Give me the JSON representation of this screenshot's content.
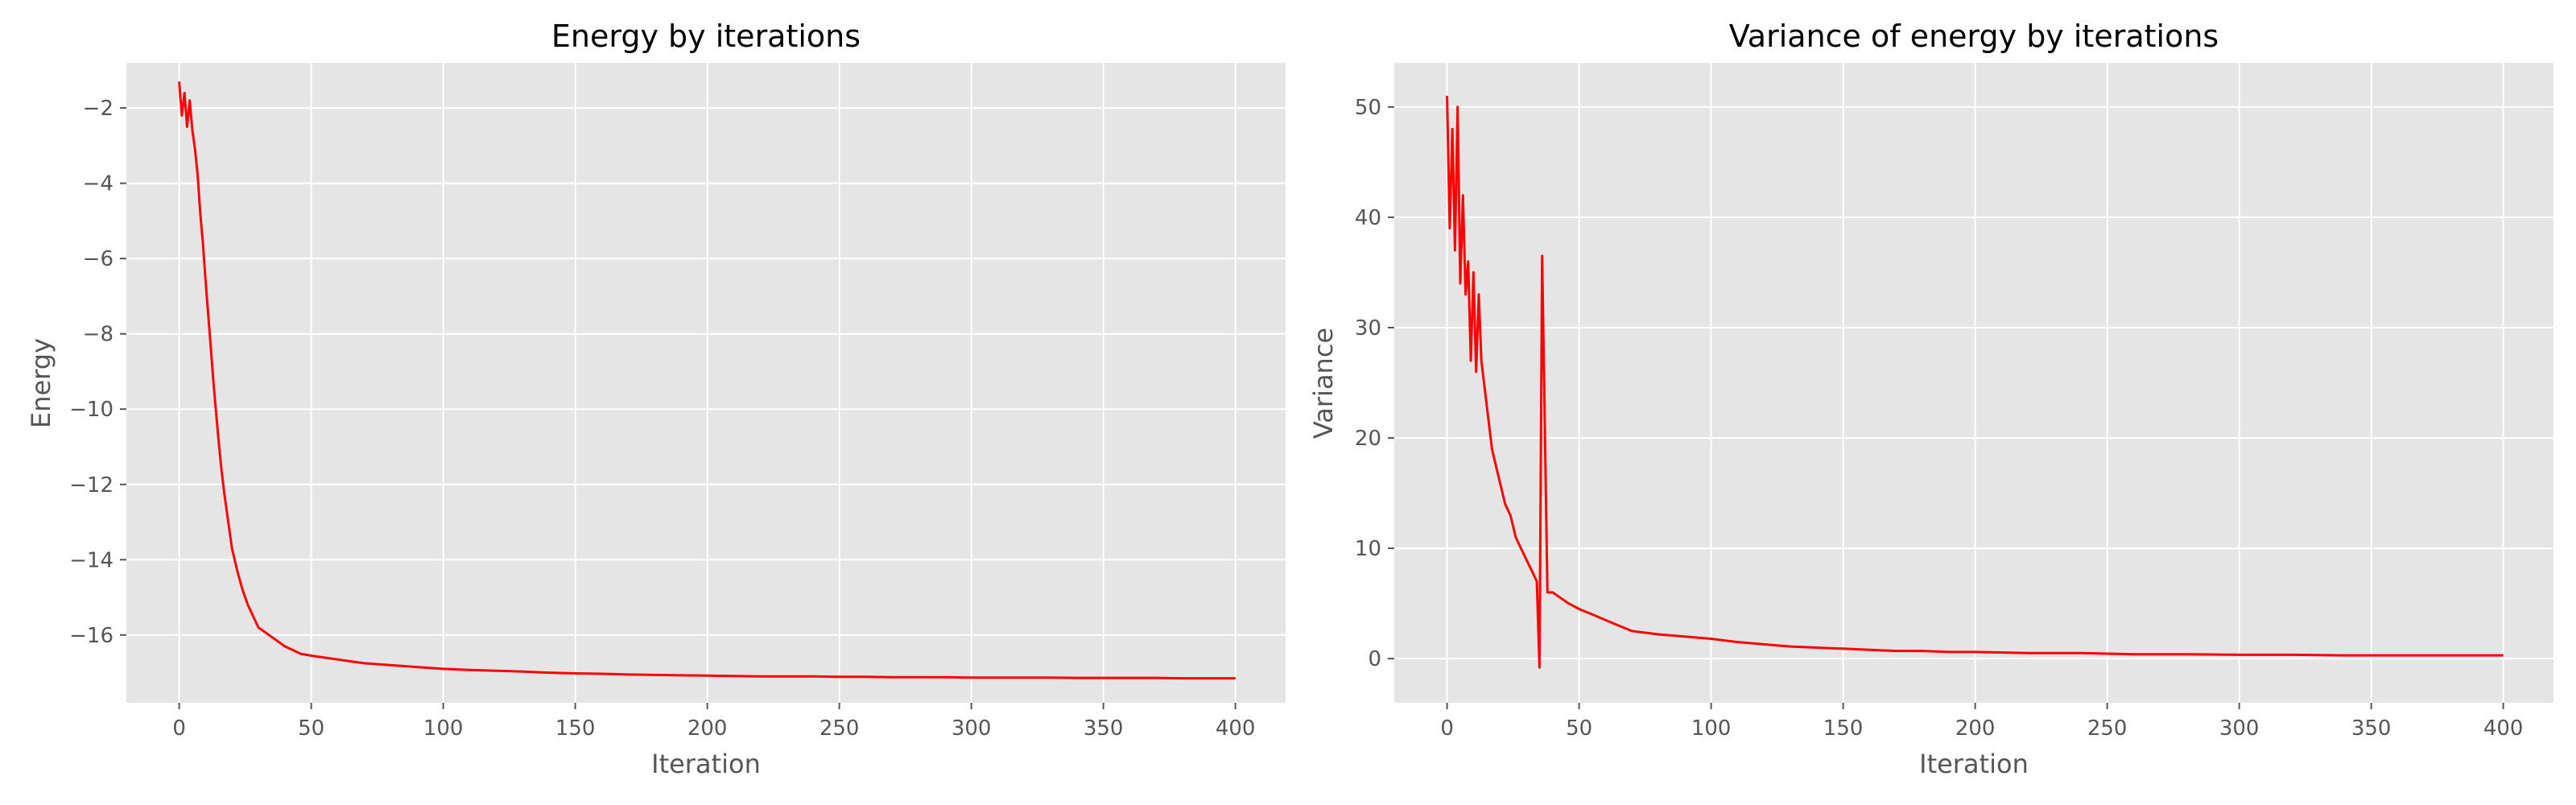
{
  "colors": {
    "figure_background": "#ffffff",
    "axes_background": "#e5e5e5",
    "grid": "#ffffff",
    "line": "#ff0000",
    "text": "#555555",
    "title": "#000000"
  },
  "chart_data": [
    {
      "type": "line",
      "title": "Energy by iterations",
      "xlabel": "Iteration",
      "ylabel": "Energy",
      "xlim": [
        -20,
        419
      ],
      "ylim": [
        -17.8,
        -0.8
      ],
      "xticks": [
        0,
        50,
        100,
        150,
        200,
        250,
        300,
        350,
        400
      ],
      "xtick_labels": [
        "0",
        "50",
        "100",
        "150",
        "200",
        "250",
        "300",
        "350",
        "400"
      ],
      "yticks": [
        -16,
        -14,
        -12,
        -10,
        -8,
        -6,
        -4,
        -2
      ],
      "ytick_labels": [
        "−16",
        "−14",
        "−12",
        "−10",
        "−8",
        "−6",
        "−4",
        "−2"
      ],
      "grid": true,
      "legend": "none",
      "series": [
        {
          "color": "#ff0000",
          "x": [
            0,
            1,
            2,
            3,
            4,
            5,
            6,
            7,
            8,
            9,
            10,
            11,
            12,
            13,
            14,
            15,
            16,
            17,
            18,
            19,
            20,
            22,
            24,
            26,
            28,
            30,
            32,
            34,
            36,
            38,
            40,
            43,
            46,
            50,
            55,
            60,
            65,
            70,
            80,
            90,
            100,
            110,
            120,
            130,
            140,
            150,
            160,
            170,
            180,
            190,
            200,
            210,
            220,
            230,
            240,
            250,
            260,
            270,
            280,
            290,
            300,
            310,
            320,
            330,
            340,
            350,
            360,
            370,
            380,
            390,
            400
          ],
          "y": [
            -1.3,
            -2.2,
            -1.6,
            -2.5,
            -1.8,
            -2.6,
            -3.1,
            -3.8,
            -4.8,
            -5.6,
            -6.6,
            -7.5,
            -8.4,
            -9.3,
            -10.1,
            -10.9,
            -11.6,
            -12.2,
            -12.7,
            -13.2,
            -13.7,
            -14.3,
            -14.8,
            -15.2,
            -15.5,
            -15.8,
            -15.9,
            -16.0,
            -16.1,
            -16.2,
            -16.3,
            -16.4,
            -16.5,
            -16.55,
            -16.6,
            -16.65,
            -16.7,
            -16.75,
            -16.8,
            -16.85,
            -16.9,
            -16.93,
            -16.95,
            -16.97,
            -17.0,
            -17.02,
            -17.03,
            -17.05,
            -17.06,
            -17.07,
            -17.08,
            -17.09,
            -17.1,
            -17.1,
            -17.1,
            -17.11,
            -17.11,
            -17.12,
            -17.12,
            -17.12,
            -17.13,
            -17.13,
            -17.13,
            -17.13,
            -17.14,
            -17.14,
            -17.14,
            -17.14,
            -17.15,
            -17.15,
            -17.15
          ]
        }
      ]
    },
    {
      "type": "line",
      "title": "Variance of energy by iterations",
      "xlabel": "Iteration",
      "ylabel": "Variance",
      "xlim": [
        -20,
        419
      ],
      "ylim": [
        -4,
        54
      ],
      "xticks": [
        0,
        50,
        100,
        150,
        200,
        250,
        300,
        350,
        400
      ],
      "xtick_labels": [
        "0",
        "50",
        "100",
        "150",
        "200",
        "250",
        "300",
        "350",
        "400"
      ],
      "yticks": [
        0,
        10,
        20,
        30,
        40,
        50
      ],
      "ytick_labels": [
        "0",
        "10",
        "20",
        "30",
        "40",
        "50"
      ],
      "grid": true,
      "legend": "none",
      "series": [
        {
          "color": "#ff0000",
          "x": [
            0,
            1,
            2,
            3,
            4,
            5,
            6,
            7,
            8,
            9,
            10,
            11,
            12,
            13,
            14,
            15,
            16,
            17,
            18,
            19,
            20,
            22,
            24,
            26,
            28,
            30,
            32,
            34,
            35,
            36,
            38,
            40,
            43,
            46,
            50,
            55,
            60,
            65,
            70,
            80,
            90,
            100,
            110,
            120,
            130,
            140,
            150,
            160,
            170,
            180,
            190,
            200,
            220,
            240,
            260,
            280,
            300,
            320,
            340,
            360,
            380,
            400
          ],
          "y": [
            51,
            39,
            48,
            37,
            50,
            34,
            42,
            33,
            36,
            27,
            35,
            26,
            33,
            27,
            25,
            23,
            21,
            19,
            18,
            17,
            16,
            14,
            13,
            11,
            10,
            9,
            8,
            7,
            -0.8,
            36.5,
            6,
            6,
            5.5,
            5,
            4.5,
            4,
            3.5,
            3,
            2.5,
            2.2,
            2,
            1.8,
            1.5,
            1.3,
            1.1,
            1.0,
            0.9,
            0.8,
            0.7,
            0.7,
            0.6,
            0.6,
            0.5,
            0.5,
            0.4,
            0.4,
            0.35,
            0.35,
            0.3,
            0.3,
            0.3,
            0.3
          ]
        }
      ]
    }
  ]
}
